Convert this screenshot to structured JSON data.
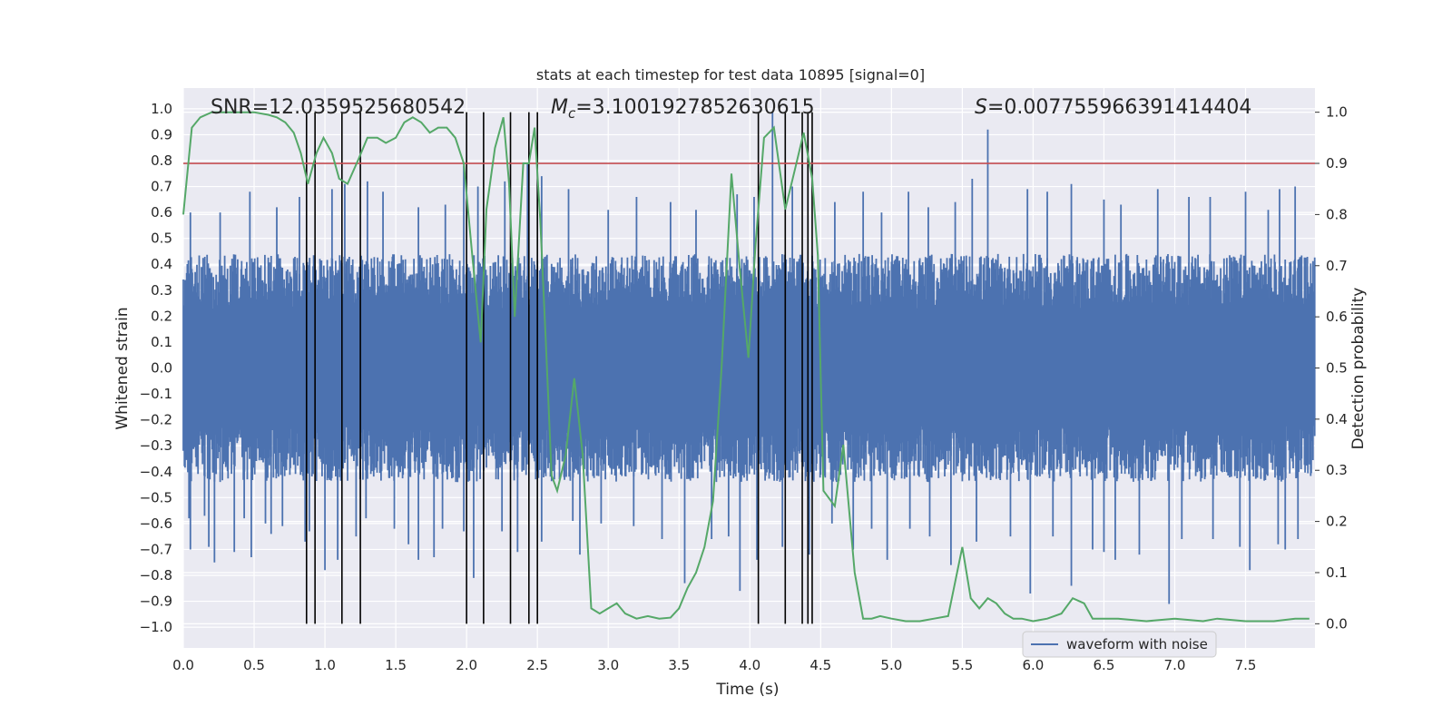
{
  "chart_data": {
    "type": "line",
    "title": "stats at each timestep for test data 10895 [signal=0]",
    "xlabel": "Time (s)",
    "ylabel_left": "Whitened strain",
    "ylabel_right": "Detection probability",
    "xlim": [
      0.0,
      7.99
    ],
    "ylim_left": [
      -1.08,
      1.08
    ],
    "ylim_right": [
      -0.0473,
      1.0473
    ],
    "x_ticks": [
      "0.0",
      "0.5",
      "1.0",
      "1.5",
      "2.0",
      "2.5",
      "3.0",
      "3.5",
      "4.0",
      "4.5",
      "5.0",
      "5.5",
      "6.0",
      "6.5",
      "7.0",
      "7.5"
    ],
    "y_left_ticks": [
      "1.0",
      "0.9",
      "0.8",
      "0.7",
      "0.6",
      "0.5",
      "0.4",
      "0.3",
      "0.2",
      "0.1",
      "0.0",
      "−0.1",
      "−0.2",
      "−0.3",
      "−0.4",
      "−0.5",
      "−0.6",
      "−0.7",
      "−0.8",
      "−0.9",
      "−1.0"
    ],
    "y_right_ticks": [
      "1.0",
      "0.9",
      "0.8",
      "0.7",
      "0.6",
      "0.5",
      "0.4",
      "0.3",
      "0.2",
      "0.1",
      "0.0"
    ],
    "grid": true,
    "annotations": {
      "snr": "SNR=12.0359525680542",
      "mc_symbol": "M",
      "mc_sub": "c",
      "mc_value": "=3.1001927852630615",
      "s_symbol": "S",
      "s_value": "=0.007755966391414404"
    },
    "legend": {
      "label": "waveform with noise",
      "placement": "bottom-right"
    },
    "threshold": {
      "axis": "right",
      "value": 0.9,
      "color": "#c44e52"
    },
    "detection_lines_x": [
      0.87,
      0.93,
      1.12,
      1.25,
      2.0,
      2.12,
      2.31,
      2.44,
      2.5,
      4.06,
      4.25,
      4.37,
      4.41,
      4.44
    ],
    "series": [
      {
        "name": "waveform with noise",
        "color": "#4c72b0",
        "axis": "left",
        "description": "dense whitened strain noise, typical amplitude about ±0.4 with spikes",
        "max_spikes": [
          [
            0.05,
            0.6
          ],
          [
            0.26,
            0.6
          ],
          [
            0.47,
            0.68
          ],
          [
            0.66,
            0.62
          ],
          [
            0.82,
            0.66
          ],
          [
            1.05,
            0.69
          ],
          [
            1.14,
            0.71
          ],
          [
            1.3,
            0.72
          ],
          [
            1.41,
            0.68
          ],
          [
            1.66,
            0.62
          ],
          [
            1.85,
            0.63
          ],
          [
            1.98,
            0.78
          ],
          [
            2.08,
            0.7
          ],
          [
            2.27,
            0.72
          ],
          [
            2.43,
            0.79
          ],
          [
            2.53,
            0.74
          ],
          [
            2.72,
            0.69
          ],
          [
            3.0,
            0.61
          ],
          [
            3.2,
            0.66
          ],
          [
            3.44,
            0.64
          ],
          [
            3.62,
            0.61
          ],
          [
            3.91,
            0.67
          ],
          [
            4.03,
            0.66
          ],
          [
            4.16,
            0.99
          ],
          [
            4.3,
            0.7
          ],
          [
            4.6,
            0.64
          ],
          [
            4.8,
            0.68
          ],
          [
            4.93,
            0.6
          ],
          [
            5.12,
            0.68
          ],
          [
            5.26,
            0.62
          ],
          [
            5.45,
            0.64
          ],
          [
            5.57,
            0.73
          ],
          [
            5.68,
            0.92
          ],
          [
            5.96,
            0.69
          ],
          [
            6.1,
            0.68
          ],
          [
            6.27,
            0.71
          ],
          [
            6.5,
            0.65
          ],
          [
            6.62,
            0.63
          ],
          [
            6.88,
            0.69
          ],
          [
            7.1,
            0.66
          ],
          [
            7.25,
            0.66
          ],
          [
            7.5,
            0.68
          ],
          [
            7.66,
            0.61
          ],
          [
            7.74,
            0.69
          ],
          [
            7.85,
            0.7
          ]
        ],
        "min_spikes": [
          [
            0.04,
            -0.58
          ],
          [
            0.05,
            -0.7
          ],
          [
            0.15,
            -0.57
          ],
          [
            0.18,
            -0.69
          ],
          [
            0.22,
            -0.75
          ],
          [
            0.36,
            -0.71
          ],
          [
            0.43,
            -0.58
          ],
          [
            0.48,
            -0.73
          ],
          [
            0.58,
            -0.6
          ],
          [
            0.62,
            -0.64
          ],
          [
            0.7,
            -0.61
          ],
          [
            0.86,
            -0.67
          ],
          [
            0.89,
            -0.63
          ],
          [
            1.0,
            -0.78
          ],
          [
            1.09,
            -0.74
          ],
          [
            1.22,
            -0.65
          ],
          [
            1.29,
            -0.58
          ],
          [
            1.49,
            -0.62
          ],
          [
            1.59,
            -0.68
          ],
          [
            1.66,
            -0.74
          ],
          [
            1.77,
            -0.73
          ],
          [
            1.83,
            -0.62
          ],
          [
            1.98,
            -0.63
          ],
          [
            2.05,
            -0.81
          ],
          [
            2.25,
            -0.63
          ],
          [
            2.36,
            -0.71
          ],
          [
            2.53,
            -0.67
          ],
          [
            2.75,
            -0.59
          ],
          [
            2.8,
            -0.72
          ],
          [
            2.95,
            -0.6
          ],
          [
            3.18,
            -0.61
          ],
          [
            3.38,
            -0.66
          ],
          [
            3.54,
            -0.83
          ],
          [
            3.73,
            -0.66
          ],
          [
            3.85,
            -0.65
          ],
          [
            3.93,
            -0.86
          ],
          [
            4.05,
            -0.74
          ],
          [
            4.23,
            -0.69
          ],
          [
            4.42,
            -0.72
          ],
          [
            4.58,
            -0.6
          ],
          [
            4.73,
            -0.7
          ],
          [
            4.86,
            -0.62
          ],
          [
            4.97,
            -0.74
          ],
          [
            5.13,
            -0.62
          ],
          [
            5.27,
            -0.65
          ],
          [
            5.42,
            -0.76
          ],
          [
            5.6,
            -0.67
          ],
          [
            5.84,
            -0.65
          ],
          [
            5.98,
            -0.87
          ],
          [
            6.14,
            -0.65
          ],
          [
            6.27,
            -0.84
          ],
          [
            6.42,
            -0.7
          ],
          [
            6.5,
            -0.71
          ],
          [
            6.58,
            -0.74
          ],
          [
            6.75,
            -0.72
          ],
          [
            6.96,
            -0.91
          ],
          [
            7.05,
            -0.66
          ],
          [
            7.27,
            -0.66
          ],
          [
            7.46,
            -0.69
          ],
          [
            7.53,
            -0.78
          ],
          [
            7.73,
            -0.68
          ],
          [
            7.78,
            -0.7
          ],
          [
            7.87,
            -0.66
          ]
        ]
      },
      {
        "name": "detection probability",
        "color": "#55a868",
        "axis": "right",
        "x": [
          0,
          0.06,
          0.12,
          0.2,
          0.3,
          0.4,
          0.5,
          0.6,
          0.66,
          0.72,
          0.78,
          0.83,
          0.88,
          0.94,
          0.99,
          1.05,
          1.1,
          1.16,
          1.24,
          1.3,
          1.37,
          1.43,
          1.5,
          1.56,
          1.62,
          1.68,
          1.74,
          1.8,
          1.86,
          1.92,
          1.98,
          2.04,
          2.1,
          2.14,
          2.2,
          2.26,
          2.3,
          2.34,
          2.4,
          2.44,
          2.48,
          2.52,
          2.56,
          2.6,
          2.64,
          2.7,
          2.76,
          2.82,
          2.88,
          2.94,
          3.0,
          3.06,
          3.12,
          3.2,
          3.28,
          3.36,
          3.44,
          3.5,
          3.56,
          3.62,
          3.68,
          3.74,
          3.8,
          3.87,
          3.93,
          3.99,
          4.04,
          4.1,
          4.17,
          4.25,
          4.32,
          4.38,
          4.44,
          4.48,
          4.52,
          4.6,
          4.66,
          4.74,
          4.8,
          4.86,
          4.92,
          5.0,
          5.1,
          5.2,
          5.3,
          5.4,
          5.5,
          5.56,
          5.62,
          5.68,
          5.74,
          5.8,
          5.86,
          5.92,
          6.0,
          6.1,
          6.2,
          6.28,
          6.36,
          6.42,
          6.5,
          6.6,
          6.8,
          7.0,
          7.2,
          7.3,
          7.5,
          7.7,
          7.85,
          7.95
        ],
        "values": [
          0.8,
          0.97,
          0.99,
          1.0,
          1.0,
          1.0,
          1.0,
          0.995,
          0.99,
          0.98,
          0.96,
          0.92,
          0.86,
          0.92,
          0.95,
          0.92,
          0.87,
          0.86,
          0.91,
          0.95,
          0.95,
          0.94,
          0.95,
          0.98,
          0.99,
          0.98,
          0.96,
          0.97,
          0.97,
          0.95,
          0.9,
          0.72,
          0.55,
          0.81,
          0.93,
          0.99,
          0.86,
          0.6,
          0.9,
          0.9,
          0.97,
          0.79,
          0.55,
          0.29,
          0.26,
          0.33,
          0.48,
          0.33,
          0.03,
          0.02,
          0.03,
          0.04,
          0.02,
          0.01,
          0.015,
          0.01,
          0.012,
          0.03,
          0.07,
          0.1,
          0.15,
          0.24,
          0.5,
          0.88,
          0.69,
          0.52,
          0.74,
          0.95,
          0.97,
          0.81,
          0.89,
          0.96,
          0.87,
          0.72,
          0.26,
          0.23,
          0.35,
          0.1,
          0.01,
          0.01,
          0.015,
          0.01,
          0.005,
          0.005,
          0.01,
          0.015,
          0.15,
          0.05,
          0.03,
          0.05,
          0.04,
          0.02,
          0.01,
          0.01,
          0.005,
          0.01,
          0.02,
          0.05,
          0.04,
          0.01,
          0.01,
          0.01,
          0.005,
          0.01,
          0.005,
          0.01,
          0.005,
          0.005,
          0.01,
          0.01
        ]
      }
    ]
  }
}
